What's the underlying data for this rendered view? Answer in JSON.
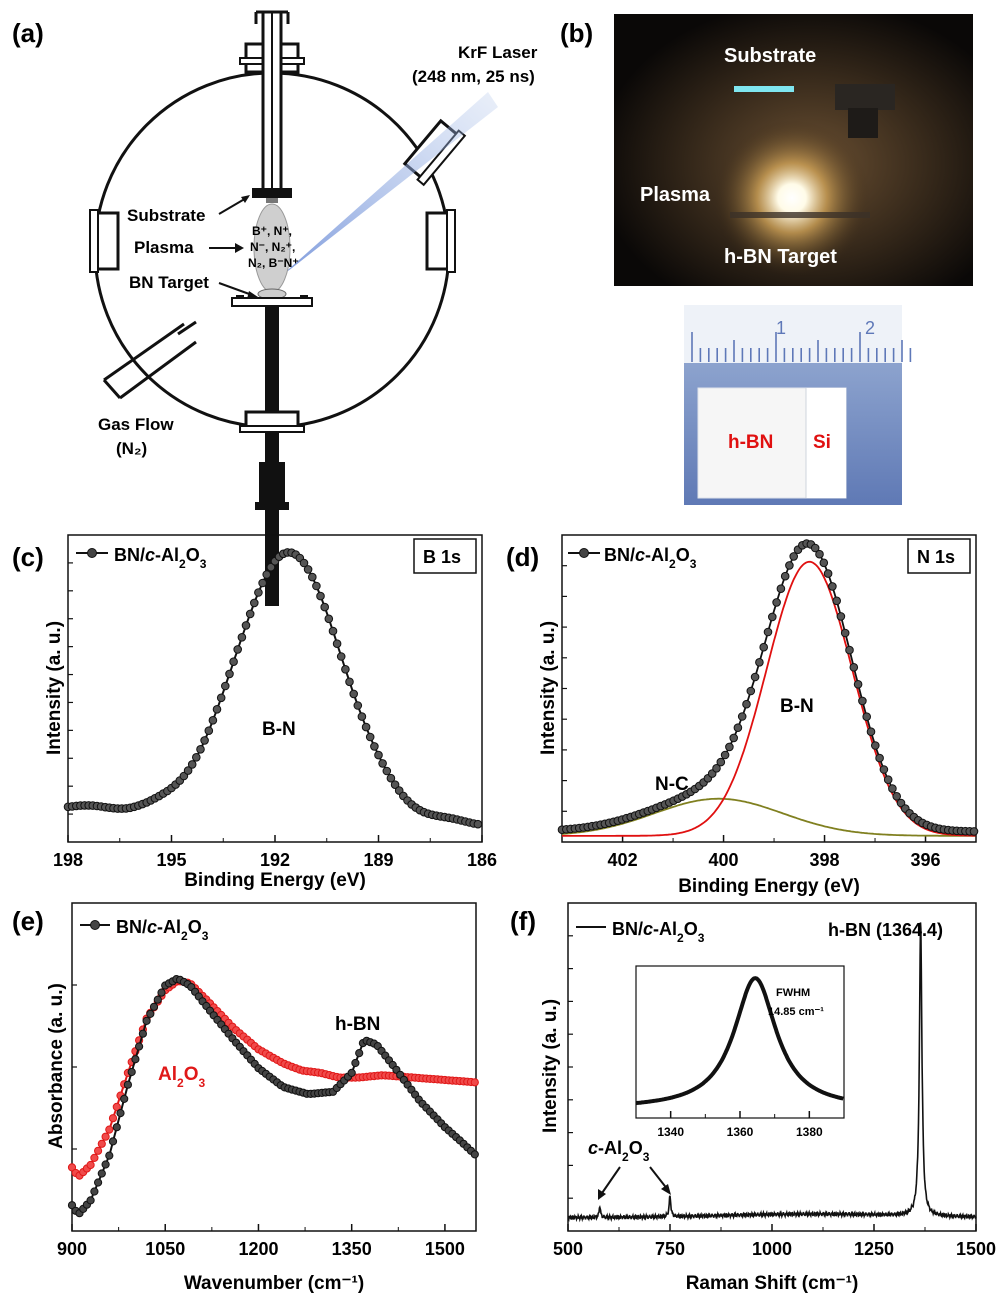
{
  "panel_labels": {
    "a": "(a)",
    "b": "(b)",
    "c": "(c)",
    "d": "(d)",
    "e": "(e)",
    "f": "(f)"
  },
  "panel_a": {
    "laser_line1": "KrF Laser",
    "laser_line2": "(248 nm, 25 ns)",
    "substrate": "Substrate",
    "plasma": "Plasma",
    "target": "BN Target",
    "species_line1": "B⁺, N⁺,",
    "species_line2": "N⁻, N₂⁺,",
    "species_line3": "N₂, B⁻N⁺",
    "gas_line1": "Gas Flow",
    "gas_line2": "(N₂)"
  },
  "panel_b": {
    "substrate": "Substrate",
    "plasma": "Plasma",
    "target": "h-BN Target",
    "ruler_1": "1",
    "ruler_2": "2",
    "sample_hbn": "h-BN",
    "sample_si": "Si"
  },
  "chart_data": [
    {
      "id": "c",
      "type": "scatter",
      "legend": "BN/c-Al2O3",
      "badge": "B 1s",
      "xlabel": "Binding Energy (eV)",
      "ylabel": "Intensity (a. u.)",
      "xlim": [
        198,
        186
      ],
      "xticks": [
        198,
        195,
        192,
        189,
        186
      ],
      "annotations": [
        "B-N"
      ],
      "peak": {
        "center": 191.6,
        "fwhm": 3.6,
        "baseline_left": 0.06,
        "baseline_right": 0.0
      }
    },
    {
      "id": "d",
      "type": "scatter",
      "legend": "BN/c-Al2O3",
      "badge": "N 1s",
      "xlabel": "Binding Energy (eV)",
      "ylabel": "Intensity (a. u.)",
      "xlim": [
        403.2,
        395.0
      ],
      "xticks": [
        402,
        400,
        398,
        396
      ],
      "annotations": [
        "B-N",
        "N-C"
      ],
      "fit_components": [
        {
          "label": "B-N",
          "center": 398.3,
          "fwhm": 2.0,
          "color": "#e01010"
        },
        {
          "label": "N-C",
          "center": 400.1,
          "fwhm": 3.0,
          "height": 0.13,
          "color": "#808020"
        }
      ]
    },
    {
      "id": "e",
      "type": "line",
      "xlabel": "Wavenumber (cm⁻¹)",
      "ylabel": "Absorbance (a. u.)",
      "xlim": [
        900,
        1550
      ],
      "xticks": [
        900,
        1050,
        1200,
        1350,
        1500
      ],
      "annotations": [
        "h-BN",
        "Al2O3"
      ],
      "series": [
        {
          "name": "BN/c-Al2O3",
          "color": "#111111",
          "x": [
            900,
            910,
            930,
            960,
            990,
            1020,
            1050,
            1070,
            1090,
            1120,
            1160,
            1200,
            1240,
            1280,
            1320,
            1350,
            1370,
            1390,
            1420,
            1460,
            1500,
            1530,
            1550
          ],
          "y": [
            0.04,
            0.0,
            0.06,
            0.25,
            0.55,
            0.82,
            0.97,
            1.0,
            0.97,
            0.87,
            0.74,
            0.62,
            0.54,
            0.51,
            0.52,
            0.6,
            0.74,
            0.72,
            0.62,
            0.48,
            0.37,
            0.3,
            0.25
          ]
        },
        {
          "name": "Al2O3",
          "color": "#e01818",
          "x": [
            900,
            910,
            930,
            960,
            990,
            1020,
            1050,
            1070,
            1090,
            1120,
            1160,
            1200,
            1240,
            1270,
            1300,
            1330,
            1360,
            1400,
            1450,
            1500,
            1550
          ],
          "y": [
            0.2,
            0.16,
            0.21,
            0.36,
            0.6,
            0.83,
            0.95,
            0.99,
            0.98,
            0.9,
            0.79,
            0.7,
            0.64,
            0.61,
            0.6,
            0.58,
            0.58,
            0.59,
            0.58,
            0.57,
            0.56
          ]
        }
      ]
    },
    {
      "id": "f",
      "type": "line",
      "legend": "BN/c-Al2O3",
      "xlabel": "Raman Shift (cm⁻¹)",
      "ylabel": "Intensity (a. u.)",
      "xlim": [
        500,
        1500
      ],
      "xticks": [
        500,
        750,
        1000,
        1250,
        1500
      ],
      "annotations": [
        "h-BN (1364.4)",
        "c-Al2O3"
      ],
      "peaks": [
        {
          "center": 578,
          "height": 0.04,
          "width": 4
        },
        {
          "center": 750,
          "height": 0.07,
          "width": 5
        },
        {
          "center": 1364.4,
          "height": 1.0,
          "width": 7.4
        }
      ],
      "inset": {
        "xlim": [
          1330,
          1390
        ],
        "xticks": [
          1340,
          1360,
          1380
        ],
        "fwhm_label": "FWHM",
        "fwhm_value": "14.85 cm⁻¹",
        "center": 1364.4,
        "fwhm": 14.85
      }
    }
  ]
}
